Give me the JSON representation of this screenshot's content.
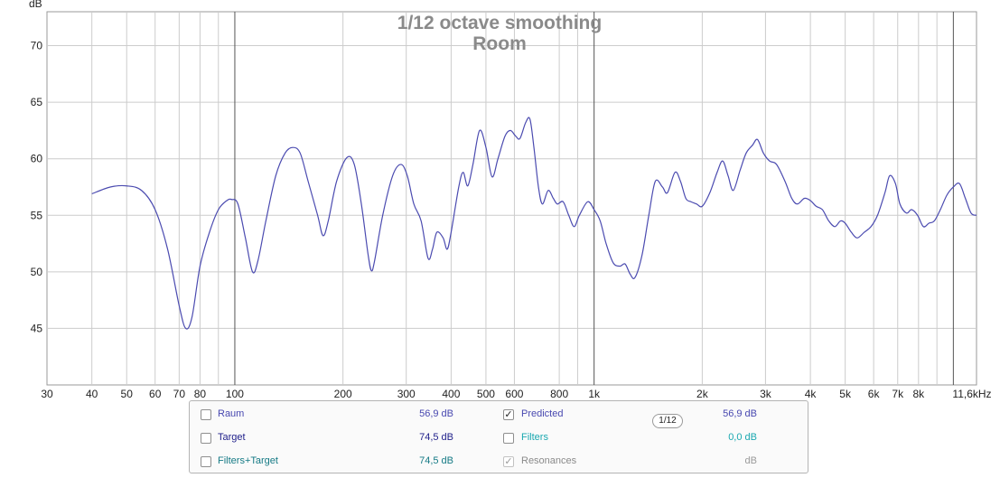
{
  "chart_data": {
    "type": "line",
    "title": "1/12 octave smoothing",
    "subtitle": "Room",
    "ylabel": "dB",
    "xscale": "log",
    "xlim": [
      30,
      11600
    ],
    "ylim": [
      40,
      73
    ],
    "y_ticks": [
      45,
      50,
      55,
      60,
      65,
      70
    ],
    "x_ticks": [
      {
        "value": 30,
        "label": "30"
      },
      {
        "value": 40,
        "label": "40"
      },
      {
        "value": 50,
        "label": "50"
      },
      {
        "value": 60,
        "label": "60"
      },
      {
        "value": 70,
        "label": "70"
      },
      {
        "value": 80,
        "label": "80"
      },
      {
        "value": 100,
        "label": "100"
      },
      {
        "value": 200,
        "label": "200"
      },
      {
        "value": 300,
        "label": "300"
      },
      {
        "value": 400,
        "label": "400"
      },
      {
        "value": 500,
        "label": "500"
      },
      {
        "value": 600,
        "label": "600"
      },
      {
        "value": 800,
        "label": "800"
      },
      {
        "value": 1000,
        "label": "1k"
      },
      {
        "value": 2000,
        "label": "2k"
      },
      {
        "value": 3000,
        "label": "3k"
      },
      {
        "value": 4000,
        "label": "4k"
      },
      {
        "value": 5000,
        "label": "5k"
      },
      {
        "value": 6000,
        "label": "6k"
      },
      {
        "value": 7000,
        "label": "7k"
      },
      {
        "value": 8000,
        "label": "8k"
      },
      {
        "value": 11600,
        "label": "11,6kHz"
      }
    ],
    "grid_minor": [
      90,
      900,
      9000
    ],
    "grid_major": [
      100,
      1000,
      10000
    ],
    "grid": true,
    "colors": {
      "line": "#4b4bb0",
      "major_grid": "#555555",
      "minor_grid": "#cccccc",
      "frame": "#9a9a9a"
    },
    "series": [
      {
        "name": "Predicted",
        "points": [
          [
            40,
            56.9
          ],
          [
            45,
            57.5
          ],
          [
            50,
            57.6
          ],
          [
            55,
            57.2
          ],
          [
            60,
            55.5
          ],
          [
            65,
            52.0
          ],
          [
            70,
            47.0
          ],
          [
            73,
            45.0
          ],
          [
            76,
            46.0
          ],
          [
            80,
            50.5
          ],
          [
            85,
            53.5
          ],
          [
            90,
            55.5
          ],
          [
            95,
            56.3
          ],
          [
            98,
            56.4
          ],
          [
            102,
            56.0
          ],
          [
            107,
            53.0
          ],
          [
            112,
            50.0
          ],
          [
            116,
            51.0
          ],
          [
            122,
            54.5
          ],
          [
            130,
            58.5
          ],
          [
            138,
            60.5
          ],
          [
            145,
            61.0
          ],
          [
            152,
            60.5
          ],
          [
            160,
            58.0
          ],
          [
            170,
            55.0
          ],
          [
            176,
            53.2
          ],
          [
            182,
            54.5
          ],
          [
            192,
            58.0
          ],
          [
            205,
            60.1
          ],
          [
            215,
            59.5
          ],
          [
            225,
            56.0
          ],
          [
            235,
            51.5
          ],
          [
            240,
            50.1
          ],
          [
            245,
            51.0
          ],
          [
            258,
            55.0
          ],
          [
            275,
            58.5
          ],
          [
            290,
            59.5
          ],
          [
            302,
            58.5
          ],
          [
            315,
            56.0
          ],
          [
            330,
            54.5
          ],
          [
            345,
            51.2
          ],
          [
            355,
            52.0
          ],
          [
            365,
            53.5
          ],
          [
            380,
            53.0
          ],
          [
            390,
            52.0
          ],
          [
            400,
            53.5
          ],
          [
            420,
            57.5
          ],
          [
            432,
            58.8
          ],
          [
            445,
            57.6
          ],
          [
            460,
            59.5
          ],
          [
            480,
            62.5
          ],
          [
            500,
            61.0
          ],
          [
            520,
            58.4
          ],
          [
            540,
            60.0
          ],
          [
            565,
            62.0
          ],
          [
            585,
            62.5
          ],
          [
            605,
            62.0
          ],
          [
            622,
            61.8
          ],
          [
            645,
            63.2
          ],
          [
            663,
            63.5
          ],
          [
            680,
            61.0
          ],
          [
            700,
            57.5
          ],
          [
            718,
            56.0
          ],
          [
            745,
            57.2
          ],
          [
            770,
            56.5
          ],
          [
            790,
            56.0
          ],
          [
            820,
            56.2
          ],
          [
            850,
            55.0
          ],
          [
            880,
            54.0
          ],
          [
            910,
            55.0
          ],
          [
            960,
            56.2
          ],
          [
            1000,
            55.5
          ],
          [
            1040,
            54.5
          ],
          [
            1080,
            52.5
          ],
          [
            1130,
            50.8
          ],
          [
            1180,
            50.5
          ],
          [
            1220,
            50.7
          ],
          [
            1260,
            49.8
          ],
          [
            1300,
            49.5
          ],
          [
            1360,
            51.5
          ],
          [
            1420,
            55.0
          ],
          [
            1480,
            58.0
          ],
          [
            1550,
            57.5
          ],
          [
            1600,
            57.0
          ],
          [
            1680,
            58.8
          ],
          [
            1740,
            58.0
          ],
          [
            1800,
            56.5
          ],
          [
            1860,
            56.2
          ],
          [
            1930,
            56.0
          ],
          [
            2000,
            55.8
          ],
          [
            2100,
            57.0
          ],
          [
            2200,
            58.8
          ],
          [
            2280,
            59.8
          ],
          [
            2360,
            58.5
          ],
          [
            2440,
            57.2
          ],
          [
            2550,
            59.0
          ],
          [
            2650,
            60.5
          ],
          [
            2760,
            61.2
          ],
          [
            2850,
            61.7
          ],
          [
            2960,
            60.5
          ],
          [
            3080,
            59.8
          ],
          [
            3220,
            59.5
          ],
          [
            3400,
            58.0
          ],
          [
            3550,
            56.5
          ],
          [
            3680,
            56.0
          ],
          [
            3850,
            56.5
          ],
          [
            4000,
            56.3
          ],
          [
            4150,
            55.8
          ],
          [
            4320,
            55.5
          ],
          [
            4500,
            54.5
          ],
          [
            4680,
            54.0
          ],
          [
            4850,
            54.5
          ],
          [
            5000,
            54.3
          ],
          [
            5200,
            53.5
          ],
          [
            5400,
            53.0
          ],
          [
            5650,
            53.5
          ],
          [
            5900,
            54.0
          ],
          [
            6150,
            55.0
          ],
          [
            6450,
            57.0
          ],
          [
            6650,
            58.5
          ],
          [
            6900,
            57.8
          ],
          [
            7100,
            56.0
          ],
          [
            7400,
            55.2
          ],
          [
            7650,
            55.5
          ],
          [
            7950,
            55.0
          ],
          [
            8250,
            54.0
          ],
          [
            8550,
            54.3
          ],
          [
            8850,
            54.5
          ],
          [
            9200,
            55.5
          ],
          [
            9600,
            56.8
          ],
          [
            10000,
            57.5
          ],
          [
            10400,
            57.8
          ],
          [
            10800,
            56.5
          ],
          [
            11200,
            55.2
          ],
          [
            11600,
            55.0
          ]
        ]
      }
    ]
  },
  "legend": {
    "rows": [
      {
        "left": {
          "label": "Raum",
          "value": "56,9 dB",
          "checked": false,
          "label_color": "#4848b0",
          "value_color": "#4848b0"
        },
        "right": {
          "label": "Predicted",
          "value": "56,9 dB",
          "checked": true,
          "label_color": "#4848b0",
          "value_color": "#4848b0"
        }
      },
      {
        "left": {
          "label": "Target",
          "value": "74,5 dB",
          "checked": false,
          "label_color": "#1f1f8a",
          "value_color": "#1f1f8a"
        },
        "right": {
          "label": "Filters",
          "value": "0,0 dB",
          "checked": false,
          "label_color": "#1aa8b0",
          "value_color": "#1aa8b0"
        }
      },
      {
        "left": {
          "label": "Filters+Target",
          "value": "74,5 dB",
          "checked": false,
          "label_color": "#157a85",
          "value_color": "#157a85"
        },
        "right": {
          "label": "Resonances",
          "value": "dB",
          "checked": true,
          "disabled": true,
          "label_color": "#8a8a8a",
          "value_color": "#9a9a9a"
        }
      }
    ],
    "smoothing_button": "1/12"
  }
}
